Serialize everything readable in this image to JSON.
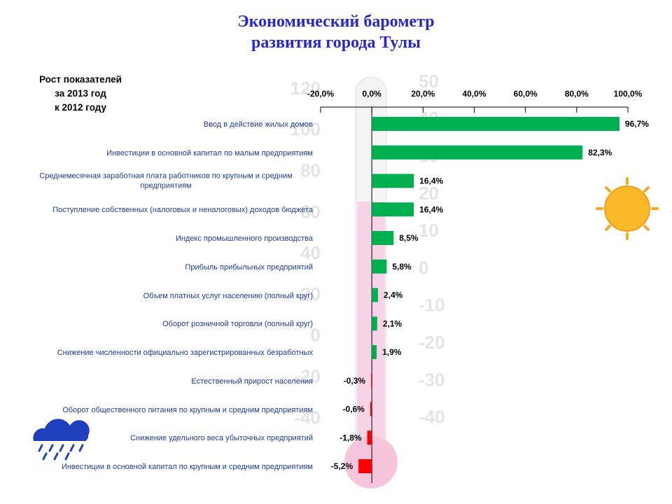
{
  "chart_data": {
    "type": "barh",
    "title": [
      "Экономический барометр",
      "развития города Тулы"
    ],
    "subtitle": [
      "Рост показателей",
      "за 2013 год",
      "к 2012 году"
    ],
    "categories": [
      "Ввод в действие  жилых домов",
      "Инвестиции  в основной капитал по малым предприятиям",
      "Среднемесячная  заработная плата работников по крупным и средним предприятиям",
      "Поступление  собственных (налоговых и неналоговых) доходов бюджета",
      "Индекс  промышленного производства",
      "Прибыль прибыльных предприятий",
      "Объем платных услуг населению (полный круг)",
      "Оборот розничной торговли (полный круг)",
      "Снижение  численности официально зарегистрированных безработных",
      "Естественный  прирост населения",
      "Оборот общественного  питания по крупным и средним  предприятиям",
      "Снижение  удельного веса убыточных  предприятий",
      "Инвестиции  в основной капитал по крупным и средним предприятиям"
    ],
    "values": [
      96.7,
      82.3,
      16.4,
      16.4,
      8.5,
      5.8,
      2.4,
      2.1,
      1.9,
      -0.3,
      -0.6,
      -1.8,
      -5.2
    ],
    "value_labels": [
      "96,7%",
      "82,3%",
      "16,4%",
      "16,4%",
      "8,5%",
      "5,8%",
      "2,4%",
      "2,1%",
      "1,9%",
      "-0,3%",
      "-0,6%",
      "-1,8%",
      "-5,2%"
    ],
    "positive_color": "#00b050",
    "negative_color": "#ff0000",
    "xlim": [
      -20,
      100
    ],
    "xticks": [
      {
        "value": -20,
        "label": "-20,0%"
      },
      {
        "value": 0,
        "label": "0,0%"
      },
      {
        "value": 20,
        "label": "20,0%"
      },
      {
        "value": 40,
        "label": "40,0%"
      },
      {
        "value": 60,
        "label": "60,0%"
      },
      {
        "value": 80,
        "label": "80,0%"
      },
      {
        "value": 100,
        "label": "100,0%"
      }
    ],
    "thermometer_left_labels": [
      "120",
      "100",
      "80",
      "60",
      "40",
      "20",
      "0",
      "-20",
      "-40"
    ],
    "thermometer_right_labels": [
      "50",
      "40",
      "30",
      "20",
      "10",
      "0",
      "-10",
      "-20",
      "-30",
      "-40"
    ]
  }
}
